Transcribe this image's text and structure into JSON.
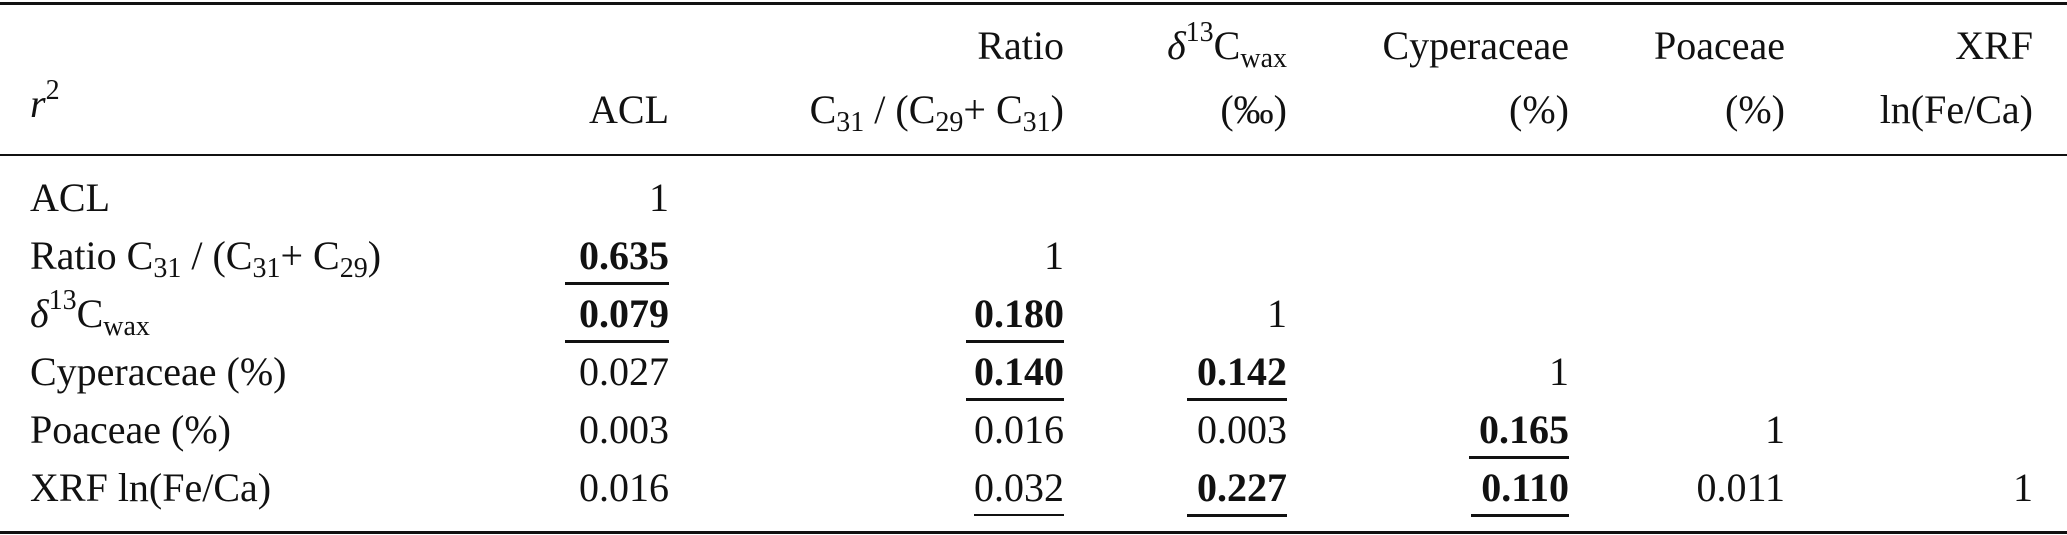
{
  "header": {
    "corner": "r",
    "corner_sup": "2",
    "acl": "ACL",
    "ratio_line1": "Ratio",
    "ratio_line2": {
      "c1": "C",
      "c1_sub": "31",
      "mid": " / (C",
      "c2_sub": "29",
      "plus": "+ C",
      "c3_sub": "31",
      "close": ")"
    },
    "d13c_line1": {
      "delta": "δ",
      "sup": "13",
      "c": "C",
      "sub": "wax"
    },
    "d13c_line2": "(‰)",
    "cyp_line1": "Cyperaceae",
    "cyp_line2": "(%)",
    "poa_line1": "Poaceae",
    "poa_line2": "(%)",
    "xrf_line1": "XRF",
    "xrf_line2": "ln(Fe/Ca)"
  },
  "rows": [
    {
      "label": "ACL",
      "cells": [
        "1",
        "",
        "",
        "",
        "",
        ""
      ]
    },
    {
      "label_parts": {
        "pre": "Ratio C",
        "sub1": "31",
        "mid": " / (C",
        "sub2": "31",
        "plus": "+ C",
        "sub3": "29",
        "close": ")"
      },
      "cells": [
        "0.635",
        "1",
        "",
        "",
        "",
        ""
      ]
    },
    {
      "label_parts": {
        "delta": "δ",
        "sup": "13",
        "c": "C",
        "sub": "wax"
      },
      "cells": [
        "0.079",
        "0.180",
        "1",
        "",
        "",
        ""
      ]
    },
    {
      "label": "Cyperaceae (%)",
      "cells": [
        "0.027",
        "0.140",
        "0.142",
        "1",
        "",
        ""
      ]
    },
    {
      "label": "Poaceae (%)",
      "cells": [
        "0.003",
        "0.016",
        "0.003",
        "0.165",
        "1",
        ""
      ]
    },
    {
      "label": "XRF ln(Fe/Ca)",
      "cells": [
        "0.016",
        "0.032",
        "0.227",
        "0.110",
        "0.011",
        "1"
      ]
    }
  ]
}
